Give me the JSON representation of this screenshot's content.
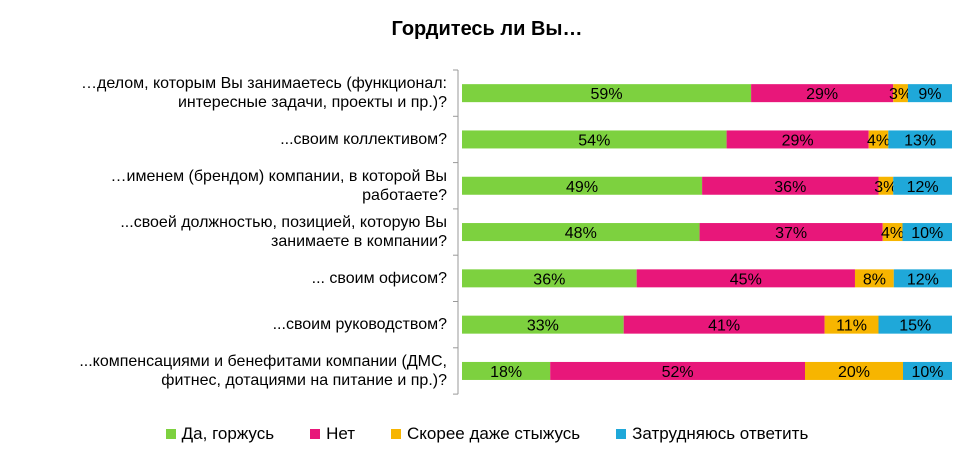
{
  "chart_data": {
    "type": "bar",
    "orientation": "horizontal",
    "stacked": "percent",
    "title": "Гордитесь ли Вы…",
    "categories": [
      [
        "…делом, которым Вы занимаетесь (функционал:",
        "интересные задачи, проекты и пр.)?"
      ],
      [
        "...своим коллективом?"
      ],
      [
        "…именем (брендом) компании,  в которой Вы",
        "работаете?"
      ],
      [
        "...своей должностью, позицией, которую Вы",
        "занимаете в компании?"
      ],
      [
        "... своим офисом?"
      ],
      [
        "...своим руководством?"
      ],
      [
        "...компенсациями и бенефитами компании  (ДМС,",
        "фитнес, дотациями на питание  и пр.)?"
      ]
    ],
    "series": [
      {
        "name": "Да, горжусь",
        "color": "#7dd13f",
        "values": [
          59,
          54,
          49,
          48,
          36,
          33,
          18
        ]
      },
      {
        "name": "Нет",
        "color": "#e8177a",
        "values": [
          29,
          29,
          36,
          37,
          45,
          41,
          52
        ]
      },
      {
        "name": "Скорее даже стыжусь",
        "color": "#f7b500",
        "values": [
          3,
          4,
          3,
          4,
          8,
          11,
          20
        ]
      },
      {
        "name": "Затрудняюсь ответить",
        "color": "#1fa8d9",
        "values": [
          9,
          13,
          12,
          10,
          12,
          15,
          10
        ]
      }
    ],
    "value_suffix": "%",
    "legend": "bottom",
    "grid": false
  }
}
